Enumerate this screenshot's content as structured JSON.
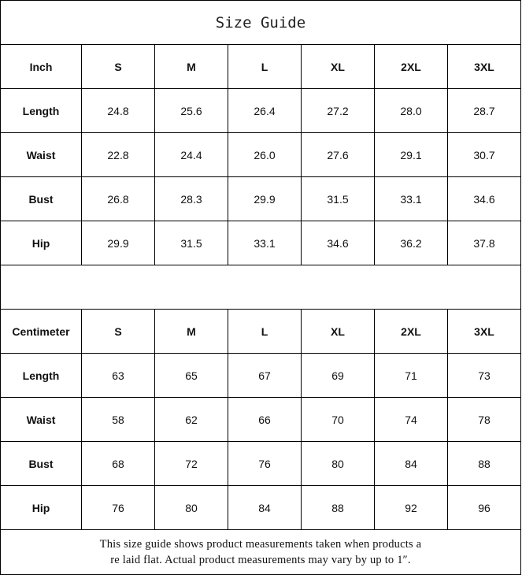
{
  "title": "Size Guide",
  "sizes": [
    "S",
    "M",
    "L",
    "XL",
    "2XL",
    "3XL"
  ],
  "inch": {
    "unit_label": "Inch",
    "rows": [
      {
        "label": "Length",
        "values": [
          "24.8",
          "25.6",
          "26.4",
          "27.2",
          "28.0",
          "28.7"
        ]
      },
      {
        "label": "Waist",
        "values": [
          "22.8",
          "24.4",
          "26.0",
          "27.6",
          "29.1",
          "30.7"
        ]
      },
      {
        "label": "Bust",
        "values": [
          "26.8",
          "28.3",
          "29.9",
          "31.5",
          "33.1",
          "34.6"
        ]
      },
      {
        "label": "Hip",
        "values": [
          "29.9",
          "31.5",
          "33.1",
          "34.6",
          "36.2",
          "37.8"
        ]
      }
    ]
  },
  "cm": {
    "unit_label": "Centimeter",
    "rows": [
      {
        "label": "Length",
        "values": [
          "63",
          "65",
          "67",
          "69",
          "71",
          "73"
        ]
      },
      {
        "label": "Waist",
        "values": [
          "58",
          "62",
          "66",
          "70",
          "74",
          "78"
        ]
      },
      {
        "label": "Bust",
        "values": [
          "68",
          "72",
          "76",
          "80",
          "84",
          "88"
        ]
      },
      {
        "label": "Hip",
        "values": [
          "76",
          "80",
          "84",
          "88",
          "92",
          "96"
        ]
      }
    ]
  },
  "note": {
    "line1": "This size guide shows product measurements taken when products a",
    "line2": "re laid flat. Actual product measurements may vary by up to 1″."
  }
}
